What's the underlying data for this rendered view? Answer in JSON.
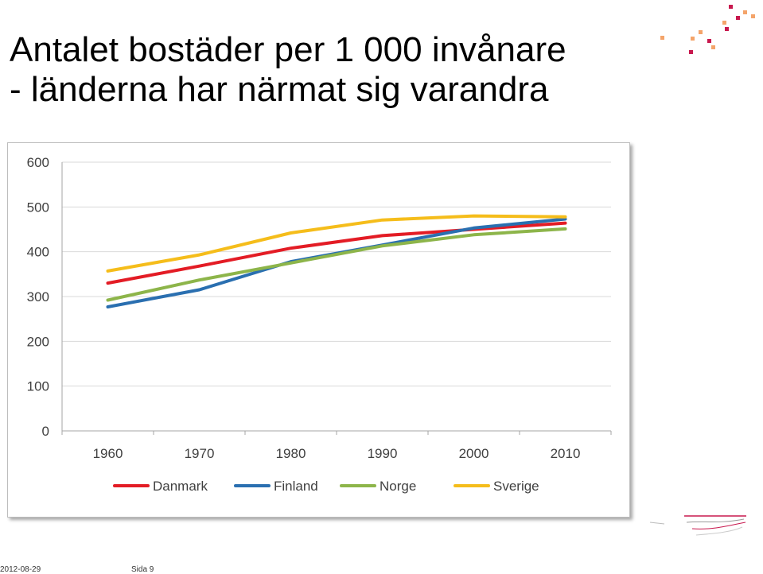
{
  "slide": {
    "title_line1": "Antalet bostäder per 1 000 invånare",
    "title_line2": "- länderna har närmat sig varandra"
  },
  "footer": {
    "date": "2012-08-29",
    "page": "Sida 9"
  },
  "colors": {
    "danmark": "#e31c25",
    "finland": "#2a6fb0",
    "norge": "#8db54a",
    "sverige": "#f5bd1b",
    "decor_orange": "#f4a46a",
    "decor_magenta": "#c8184e"
  },
  "chart_data": {
    "type": "line",
    "x": [
      "1960",
      "1970",
      "1980",
      "1990",
      "2000",
      "2010"
    ],
    "y_ticks": [
      "0",
      "100",
      "200",
      "300",
      "400",
      "500",
      "600"
    ],
    "ylim": [
      0,
      600
    ],
    "grid": true,
    "legend_position": "bottom",
    "series": [
      {
        "name": "Danmark",
        "color": "#e31c25",
        "values": [
          330,
          368,
          408,
          436,
          450,
          464
        ]
      },
      {
        "name": "Finland",
        "color": "#2a6fb0",
        "values": [
          277,
          315,
          378,
          415,
          453,
          473
        ]
      },
      {
        "name": "Norge",
        "color": "#8db54a",
        "values": [
          292,
          337,
          375,
          413,
          438,
          451
        ]
      },
      {
        "name": "Sverige",
        "color": "#f5bd1b",
        "values": [
          357,
          393,
          442,
          471,
          480,
          478
        ]
      }
    ]
  }
}
